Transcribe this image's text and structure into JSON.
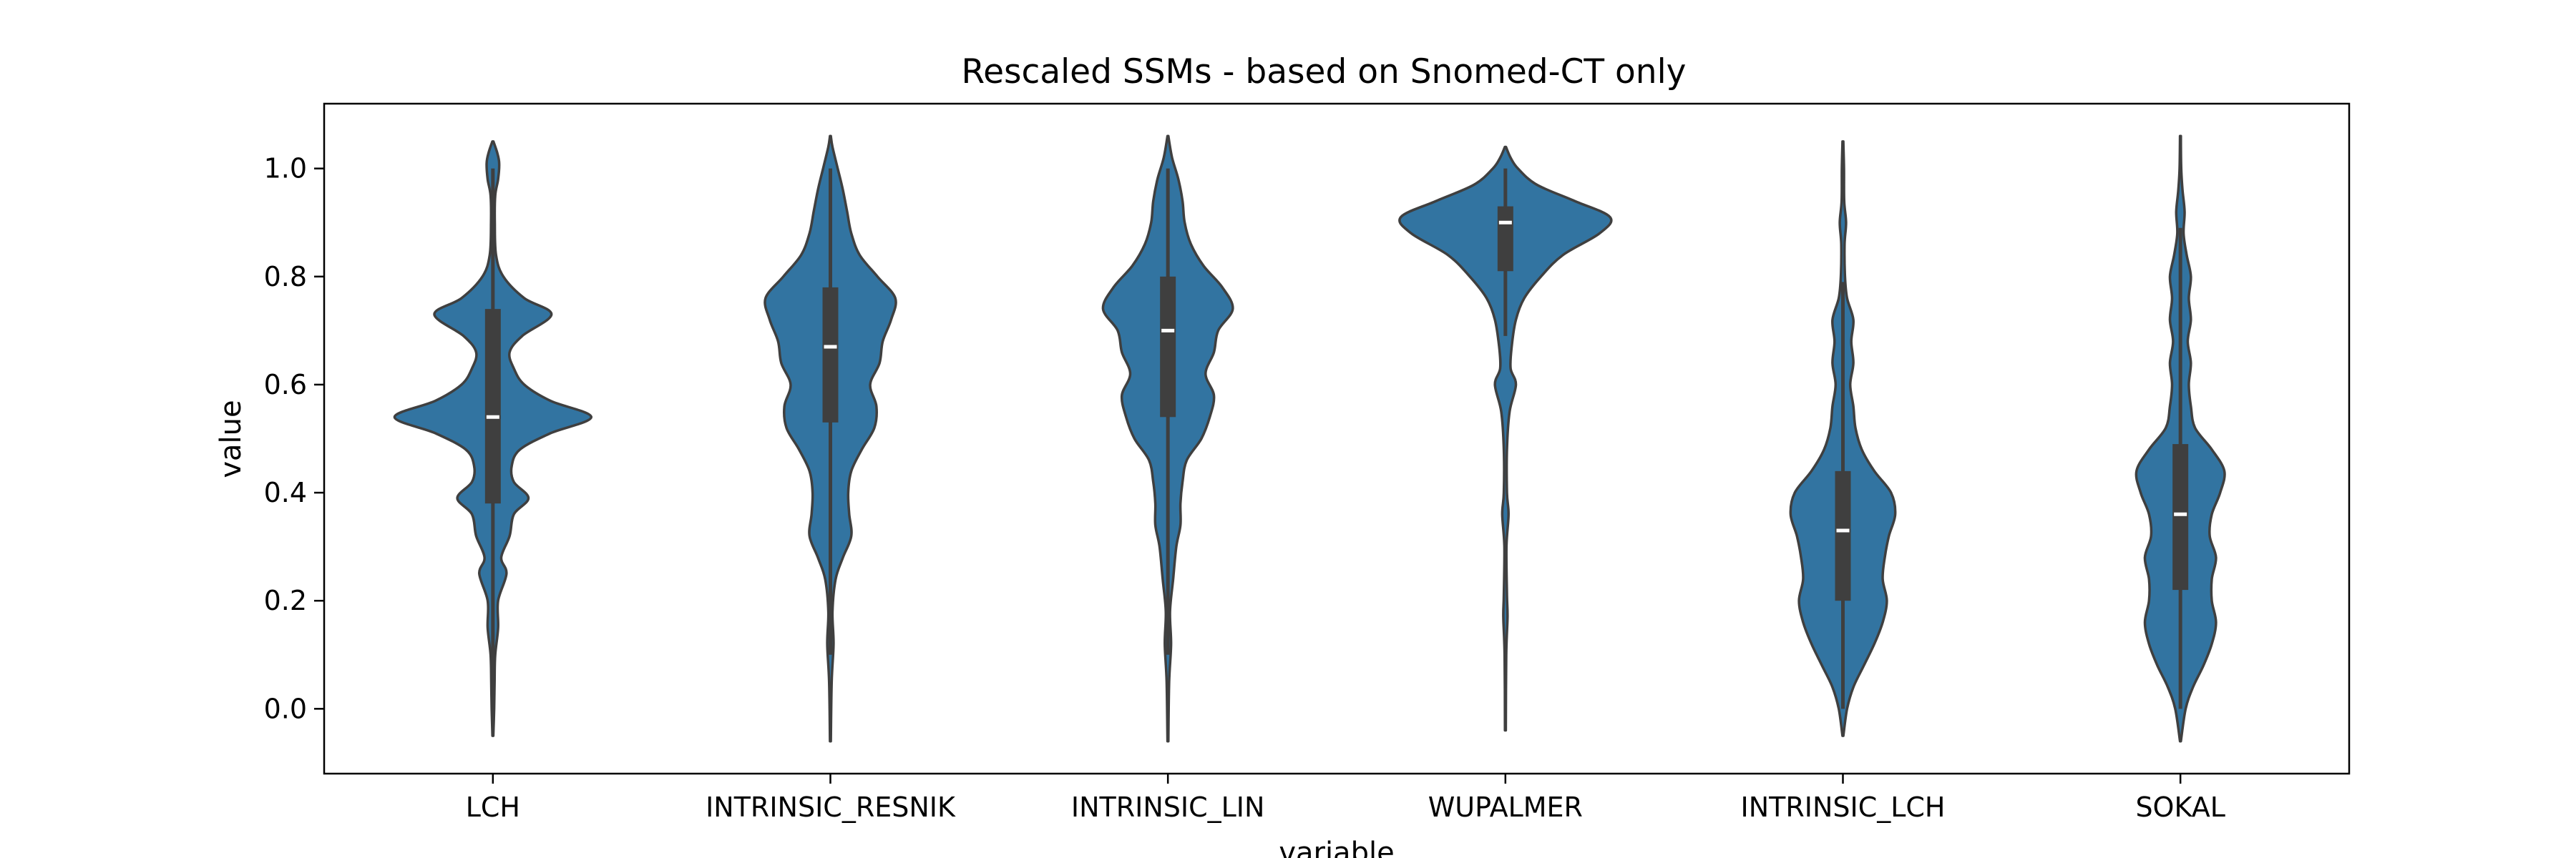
{
  "chart_data": {
    "type": "violin",
    "title": "Rescaled SSMs - based on Snomed-CT only",
    "xlabel": "variable",
    "ylabel": "value",
    "ylim": [
      -0.12,
      1.12
    ],
    "yticks": [
      "0.0",
      "0.2",
      "0.4",
      "0.6",
      "0.8",
      "1.0"
    ],
    "ytick_values": [
      0.0,
      0.2,
      0.4,
      0.6,
      0.8,
      1.0
    ],
    "grid": false,
    "legend": "none",
    "colors": {
      "fill": "#3274a1",
      "edge": "#3f3f3f",
      "box": "#3f3f3f",
      "median": "#ffffff"
    },
    "categories": [
      "LCH",
      "INTRINSIC_RESNIK",
      "INTRINSIC_LIN",
      "WUPALMER",
      "INTRINSIC_LCH",
      "SOKAL"
    ],
    "series": [
      {
        "category": "LCH",
        "min": -0.05,
        "max": 1.05,
        "q1": 0.38,
        "median": 0.54,
        "q3": 0.74,
        "whisker_low": 0.0,
        "whisker_high": 1.0,
        "density": [
          [
            -0.05,
            0.004
          ],
          [
            0.0,
            0.012
          ],
          [
            0.05,
            0.016
          ],
          [
            0.1,
            0.022
          ],
          [
            0.15,
            0.05
          ],
          [
            0.2,
            0.05
          ],
          [
            0.25,
            0.13
          ],
          [
            0.28,
            0.08
          ],
          [
            0.32,
            0.16
          ],
          [
            0.36,
            0.2
          ],
          [
            0.39,
            0.34
          ],
          [
            0.42,
            0.2
          ],
          [
            0.45,
            0.18
          ],
          [
            0.48,
            0.26
          ],
          [
            0.51,
            0.55
          ],
          [
            0.54,
            0.94
          ],
          [
            0.57,
            0.55
          ],
          [
            0.6,
            0.3
          ],
          [
            0.63,
            0.2
          ],
          [
            0.66,
            0.16
          ],
          [
            0.69,
            0.28
          ],
          [
            0.73,
            0.56
          ],
          [
            0.76,
            0.3
          ],
          [
            0.8,
            0.1
          ],
          [
            0.84,
            0.03
          ],
          [
            0.9,
            0.018
          ],
          [
            0.95,
            0.022
          ],
          [
            0.98,
            0.05
          ],
          [
            1.01,
            0.06
          ],
          [
            1.03,
            0.04
          ],
          [
            1.05,
            0.005
          ]
        ]
      },
      {
        "category": "INTRINSIC_RESNIK",
        "min": -0.06,
        "max": 1.06,
        "q1": 0.53,
        "median": 0.67,
        "q3": 0.78,
        "whisker_low": 0.1,
        "whisker_high": 1.0,
        "density": [
          [
            -0.06,
            0.004
          ],
          [
            0.05,
            0.012
          ],
          [
            0.12,
            0.03
          ],
          [
            0.18,
            0.02
          ],
          [
            0.24,
            0.05
          ],
          [
            0.28,
            0.12
          ],
          [
            0.32,
            0.2
          ],
          [
            0.36,
            0.18
          ],
          [
            0.4,
            0.17
          ],
          [
            0.44,
            0.2
          ],
          [
            0.48,
            0.3
          ],
          [
            0.52,
            0.42
          ],
          [
            0.56,
            0.44
          ],
          [
            0.6,
            0.38
          ],
          [
            0.64,
            0.47
          ],
          [
            0.68,
            0.5
          ],
          [
            0.72,
            0.58
          ],
          [
            0.76,
            0.62
          ],
          [
            0.8,
            0.45
          ],
          [
            0.84,
            0.28
          ],
          [
            0.88,
            0.2
          ],
          [
            0.92,
            0.16
          ],
          [
            0.96,
            0.12
          ],
          [
            1.0,
            0.07
          ],
          [
            1.04,
            0.02
          ],
          [
            1.06,
            0.004
          ]
        ]
      },
      {
        "category": "INTRINSIC_LIN",
        "min": -0.06,
        "max": 1.06,
        "q1": 0.54,
        "median": 0.7,
        "q3": 0.8,
        "whisker_low": 0.1,
        "whisker_high": 1.0,
        "density": [
          [
            -0.06,
            0.004
          ],
          [
            0.05,
            0.012
          ],
          [
            0.12,
            0.03
          ],
          [
            0.18,
            0.02
          ],
          [
            0.24,
            0.05
          ],
          [
            0.3,
            0.08
          ],
          [
            0.34,
            0.12
          ],
          [
            0.38,
            0.12
          ],
          [
            0.42,
            0.14
          ],
          [
            0.46,
            0.18
          ],
          [
            0.5,
            0.32
          ],
          [
            0.54,
            0.4
          ],
          [
            0.58,
            0.44
          ],
          [
            0.62,
            0.36
          ],
          [
            0.66,
            0.44
          ],
          [
            0.7,
            0.48
          ],
          [
            0.74,
            0.62
          ],
          [
            0.78,
            0.52
          ],
          [
            0.82,
            0.34
          ],
          [
            0.86,
            0.22
          ],
          [
            0.9,
            0.16
          ],
          [
            0.94,
            0.14
          ],
          [
            0.98,
            0.1
          ],
          [
            1.02,
            0.04
          ],
          [
            1.06,
            0.004
          ]
        ]
      },
      {
        "category": "WUPALMER",
        "min": -0.04,
        "max": 1.04,
        "q1": 0.81,
        "median": 0.9,
        "q3": 0.93,
        "whisker_low": 0.69,
        "whisker_high": 1.0,
        "density": [
          [
            -0.04,
            0.004
          ],
          [
            0.1,
            0.008
          ],
          [
            0.17,
            0.02
          ],
          [
            0.21,
            0.015
          ],
          [
            0.3,
            0.01
          ],
          [
            0.36,
            0.03
          ],
          [
            0.4,
            0.015
          ],
          [
            0.48,
            0.015
          ],
          [
            0.55,
            0.04
          ],
          [
            0.6,
            0.1
          ],
          [
            0.63,
            0.05
          ],
          [
            0.67,
            0.06
          ],
          [
            0.72,
            0.1
          ],
          [
            0.76,
            0.18
          ],
          [
            0.8,
            0.34
          ],
          [
            0.84,
            0.55
          ],
          [
            0.88,
            0.9
          ],
          [
            0.91,
            1.0
          ],
          [
            0.94,
            0.66
          ],
          [
            0.97,
            0.3
          ],
          [
            1.0,
            0.12
          ],
          [
            1.02,
            0.05
          ],
          [
            1.04,
            0.005
          ]
        ]
      },
      {
        "category": "INTRINSIC_LCH",
        "min": -0.05,
        "max": 1.05,
        "q1": 0.2,
        "median": 0.33,
        "q3": 0.44,
        "whisker_low": 0.0,
        "whisker_high": 0.79,
        "density": [
          [
            -0.05,
            0.004
          ],
          [
            0.0,
            0.04
          ],
          [
            0.04,
            0.1
          ],
          [
            0.08,
            0.2
          ],
          [
            0.12,
            0.3
          ],
          [
            0.16,
            0.38
          ],
          [
            0.2,
            0.42
          ],
          [
            0.24,
            0.38
          ],
          [
            0.28,
            0.4
          ],
          [
            0.32,
            0.44
          ],
          [
            0.36,
            0.5
          ],
          [
            0.4,
            0.46
          ],
          [
            0.44,
            0.3
          ],
          [
            0.48,
            0.18
          ],
          [
            0.52,
            0.12
          ],
          [
            0.56,
            0.1
          ],
          [
            0.6,
            0.07
          ],
          [
            0.64,
            0.1
          ],
          [
            0.68,
            0.08
          ],
          [
            0.72,
            0.1
          ],
          [
            0.76,
            0.04
          ],
          [
            0.8,
            0.02
          ],
          [
            0.86,
            0.016
          ],
          [
            0.9,
            0.03
          ],
          [
            0.94,
            0.012
          ],
          [
            1.0,
            0.01
          ],
          [
            1.05,
            0.004
          ]
        ]
      },
      {
        "category": "SOKAL",
        "min": -0.06,
        "max": 1.06,
        "q1": 0.22,
        "median": 0.36,
        "q3": 0.49,
        "whisker_low": 0.0,
        "whisker_high": 0.89,
        "density": [
          [
            -0.06,
            0.004
          ],
          [
            0.0,
            0.05
          ],
          [
            0.04,
            0.12
          ],
          [
            0.08,
            0.22
          ],
          [
            0.12,
            0.3
          ],
          [
            0.16,
            0.34
          ],
          [
            0.2,
            0.3
          ],
          [
            0.24,
            0.3
          ],
          [
            0.28,
            0.34
          ],
          [
            0.32,
            0.28
          ],
          [
            0.36,
            0.3
          ],
          [
            0.4,
            0.38
          ],
          [
            0.44,
            0.42
          ],
          [
            0.48,
            0.3
          ],
          [
            0.52,
            0.14
          ],
          [
            0.56,
            0.1
          ],
          [
            0.6,
            0.08
          ],
          [
            0.64,
            0.1
          ],
          [
            0.68,
            0.07
          ],
          [
            0.72,
            0.1
          ],
          [
            0.76,
            0.08
          ],
          [
            0.8,
            0.1
          ],
          [
            0.84,
            0.06
          ],
          [
            0.88,
            0.03
          ],
          [
            0.92,
            0.04
          ],
          [
            0.96,
            0.02
          ],
          [
            1.0,
            0.008
          ],
          [
            1.06,
            0.004
          ]
        ]
      }
    ]
  }
}
